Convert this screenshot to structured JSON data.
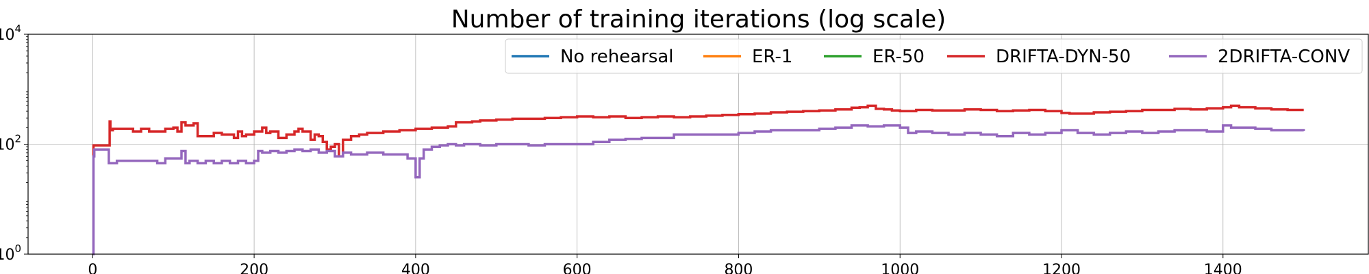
{
  "chart_data": {
    "type": "line",
    "title": "Number of training iterations (log scale)",
    "xlabel": "",
    "ylabel": "",
    "xlim": [
      -80,
      1580
    ],
    "ylim": [
      1,
      10000
    ],
    "yscale": "log",
    "grid": true,
    "x_ticks": [
      0,
      200,
      400,
      600,
      800,
      1000,
      1200,
      1400
    ],
    "x_tick_labels": [
      "0",
      "200",
      "400",
      "600",
      "800",
      "1000",
      "1200",
      "1400"
    ],
    "y_ticks": [
      1,
      100,
      10000
    ],
    "y_tick_labels": [
      {
        "base": "10",
        "exp": "0"
      },
      {
        "base": "10",
        "exp": "2"
      },
      {
        "base": "10",
        "exp": "4"
      }
    ],
    "legend": {
      "placement": "top-right",
      "ncol": 5
    },
    "series": [
      {
        "name": "No rehearsal",
        "color": "#1f77b4",
        "x": [],
        "y": []
      },
      {
        "name": "ER-1",
        "color": "#ff7f0e",
        "x": [],
        "y": []
      },
      {
        "name": "ER-50",
        "color": "#2ca02c",
        "x": [],
        "y": []
      },
      {
        "name": "DRIFTA-DYN-50",
        "color": "#d62728",
        "x": [
          0,
          1,
          2,
          20,
          21,
          22,
          25,
          26,
          40,
          50,
          60,
          70,
          80,
          90,
          100,
          105,
          110,
          115,
          125,
          130,
          150,
          160,
          170,
          175,
          180,
          185,
          190,
          200,
          210,
          215,
          220,
          230,
          240,
          250,
          255,
          260,
          270,
          275,
          280,
          285,
          290,
          295,
          300,
          305,
          310,
          320,
          330,
          340,
          360,
          380,
          400,
          420,
          440,
          450,
          460,
          470,
          480,
          500,
          520,
          540,
          560,
          580,
          600,
          620,
          640,
          660,
          680,
          700,
          720,
          740,
          760,
          780,
          800,
          820,
          840,
          860,
          880,
          900,
          920,
          940,
          950,
          960,
          970,
          980,
          990,
          1000,
          1020,
          1040,
          1060,
          1080,
          1100,
          1120,
          1140,
          1160,
          1180,
          1200,
          1210,
          1220,
          1240,
          1260,
          1280,
          1300,
          1320,
          1340,
          1360,
          1380,
          1400,
          1410,
          1420,
          1440,
          1460,
          1480,
          1500
        ],
        "y": [
          60,
          95,
          95,
          95,
          260,
          180,
          190,
          190,
          190,
          170,
          190,
          170,
          170,
          190,
          200,
          170,
          250,
          220,
          240,
          140,
          160,
          150,
          150,
          130,
          170,
          140,
          150,
          170,
          200,
          160,
          170,
          130,
          150,
          170,
          190,
          170,
          120,
          150,
          140,
          110,
          80,
          90,
          100,
          60,
          120,
          140,
          150,
          160,
          170,
          180,
          190,
          200,
          210,
          250,
          250,
          260,
          270,
          280,
          290,
          290,
          300,
          310,
          320,
          310,
          320,
          300,
          310,
          320,
          310,
          320,
          330,
          340,
          350,
          360,
          380,
          390,
          400,
          410,
          430,
          460,
          470,
          500,
          440,
          430,
          410,
          400,
          420,
          410,
          410,
          430,
          420,
          400,
          410,
          420,
          400,
          370,
          360,
          360,
          380,
          390,
          400,
          420,
          420,
          440,
          430,
          450,
          470,
          500,
          470,
          450,
          430,
          420,
          420
        ]
      },
      {
        "name": "2DRIFTA-CONV",
        "color": "#9467bd",
        "x": [
          0,
          1,
          2,
          5,
          10,
          15,
          20,
          30,
          40,
          50,
          60,
          70,
          80,
          90,
          100,
          110,
          115,
          120,
          130,
          140,
          150,
          160,
          170,
          180,
          190,
          200,
          205,
          210,
          220,
          230,
          240,
          250,
          260,
          270,
          280,
          290,
          300,
          310,
          320,
          340,
          360,
          380,
          390,
          400,
          405,
          410,
          420,
          430,
          440,
          450,
          460,
          470,
          480,
          500,
          520,
          540,
          560,
          580,
          600,
          620,
          640,
          660,
          680,
          700,
          720,
          740,
          760,
          780,
          800,
          820,
          840,
          860,
          880,
          900,
          920,
          940,
          960,
          980,
          1000,
          1010,
          1020,
          1040,
          1060,
          1080,
          1100,
          1120,
          1140,
          1160,
          1180,
          1200,
          1220,
          1240,
          1260,
          1280,
          1300,
          1320,
          1340,
          1360,
          1380,
          1400,
          1410,
          1420,
          1440,
          1460,
          1480,
          1500
        ],
        "y": [
          1,
          60,
          80,
          80,
          80,
          80,
          45,
          50,
          50,
          50,
          50,
          50,
          45,
          55,
          55,
          75,
          45,
          50,
          45,
          50,
          45,
          50,
          45,
          50,
          45,
          50,
          75,
          70,
          75,
          70,
          75,
          80,
          75,
          80,
          70,
          75,
          60,
          70,
          65,
          70,
          65,
          65,
          55,
          25,
          55,
          80,
          90,
          95,
          100,
          95,
          100,
          100,
          95,
          100,
          100,
          95,
          100,
          100,
          100,
          110,
          120,
          125,
          130,
          130,
          150,
          150,
          150,
          150,
          160,
          170,
          180,
          180,
          180,
          190,
          200,
          220,
          210,
          220,
          200,
          160,
          170,
          160,
          150,
          160,
          150,
          140,
          160,
          150,
          160,
          180,
          160,
          150,
          160,
          170,
          160,
          170,
          180,
          180,
          170,
          220,
          200,
          200,
          190,
          180,
          180,
          175
        ]
      }
    ]
  }
}
